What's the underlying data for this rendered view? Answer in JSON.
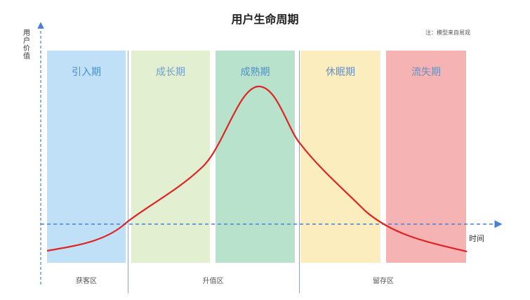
{
  "title": "用户生命周期",
  "note": "注：模型来自易观",
  "axes": {
    "y_label": "用户价值",
    "x_label": "时间"
  },
  "stages": [
    {
      "label": "引入期",
      "fill": "#bfe0f7",
      "text_color": "#4a8fcf"
    },
    {
      "label": "成长期",
      "fill": "#e2efd0",
      "text_color": "#6fa0c8"
    },
    {
      "label": "成熟期",
      "fill": "#b8e2cb",
      "text_color": "#4f8fc4"
    },
    {
      "label": "休眠期",
      "fill": "#fbedbd",
      "text_color": "#6b8fc0"
    },
    {
      "label": "流失期",
      "fill": "#f5b3b3",
      "text_color": "#6b8fc0"
    }
  ],
  "zones": [
    {
      "label": "获客区"
    },
    {
      "label": "升值区"
    },
    {
      "label": "留存区"
    }
  ],
  "colors": {
    "curve": "#e02424",
    "axis": "#4a7fd4",
    "divider": "#93a3c4"
  }
}
